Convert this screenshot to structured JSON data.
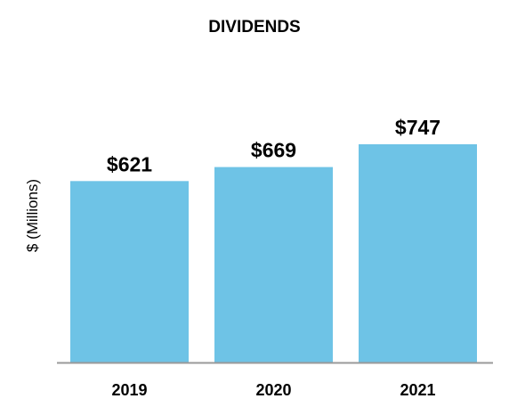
{
  "chart_data": {
    "type": "bar",
    "title": "DIVIDENDS",
    "xlabel": "",
    "ylabel": "$ (Millions)",
    "categories": [
      "2019",
      "2020",
      "2021"
    ],
    "values": [
      621,
      669,
      747
    ],
    "value_labels": [
      "$621",
      "$669",
      "$747"
    ],
    "ylim": [
      0,
      747
    ],
    "grid": false,
    "legend": "none",
    "bar_color": "#6EC3E6",
    "axis_color": "#9A9A9A"
  }
}
